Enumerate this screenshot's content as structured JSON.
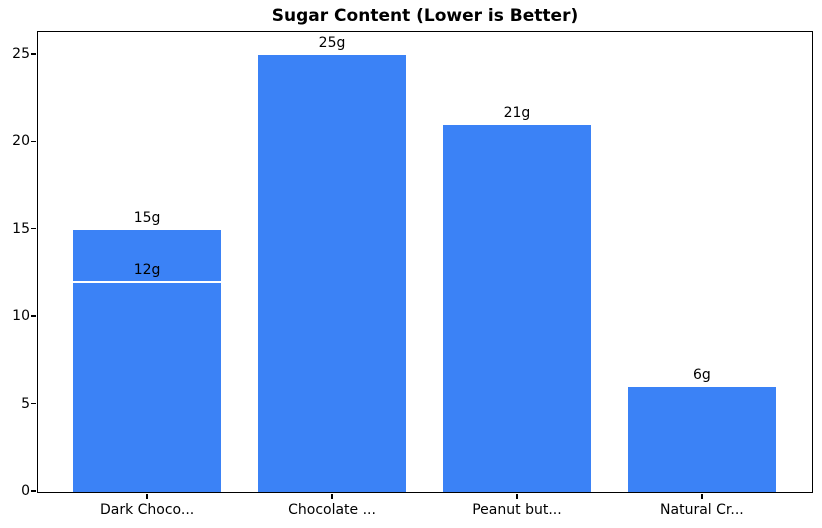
{
  "figure": {
    "background": "#ffffff"
  },
  "chart_data": {
    "type": "bar",
    "title": "Sugar Content (Lower is Better)",
    "categories": [
      "Dark Choco...",
      "Chocolate ...",
      "Peanut but...",
      "Natural Cr..."
    ],
    "values": [
      15,
      25,
      21,
      6
    ],
    "bar_labels": [
      "15g",
      "25g",
      "21g",
      "6g"
    ],
    "annotations": [
      {
        "category_index": 0,
        "value": 12,
        "label": "12g",
        "line_color": "#ffffff"
      }
    ],
    "xlabel": "",
    "ylabel": "",
    "yticks": [
      0,
      5,
      10,
      15,
      20,
      25
    ],
    "ylim": [
      0,
      26.25
    ],
    "xlim": [
      -0.59,
      3.59
    ],
    "bar_width_units": 0.8,
    "bar_color": "#3b82f6",
    "axis_color": "#000000",
    "text_color": "#000000",
    "grid": false,
    "legend": false
  }
}
